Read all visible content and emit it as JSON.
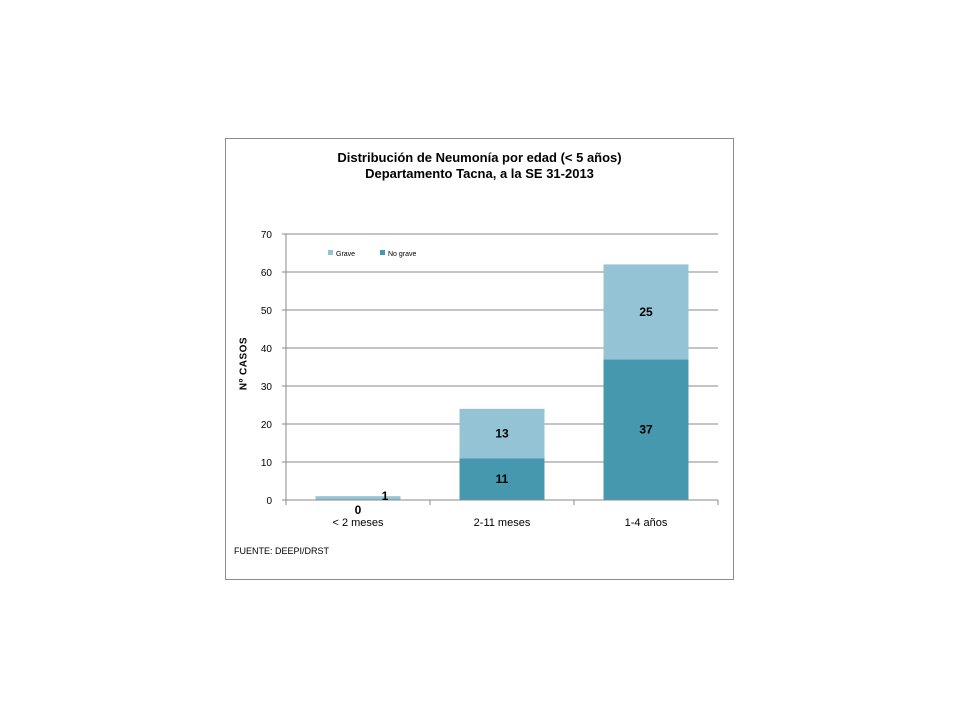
{
  "chart_data": {
    "type": "bar",
    "stacked": true,
    "title": "Distribución  de Neumonía por edad (< 5 años)",
    "subtitle": "Departamento Tacna, a la SE  31-2013",
    "xlabel": "",
    "ylabel": "Nº CASOS",
    "ylim": [
      0,
      70
    ],
    "yticks": [
      0,
      10,
      20,
      30,
      40,
      50,
      60,
      70
    ],
    "grid": true,
    "legend_position": "top-left",
    "categories": [
      "< 2 meses",
      "2-11 meses",
      "1-4 años"
    ],
    "series": [
      {
        "name": "No grave",
        "values": [
          0,
          11,
          37
        ],
        "color": "#4598ae"
      },
      {
        "name": "Grave",
        "values": [
          1,
          13,
          25
        ],
        "color": "#93c3d4"
      }
    ],
    "source": "FUENTE: DEEPI/DRST"
  }
}
